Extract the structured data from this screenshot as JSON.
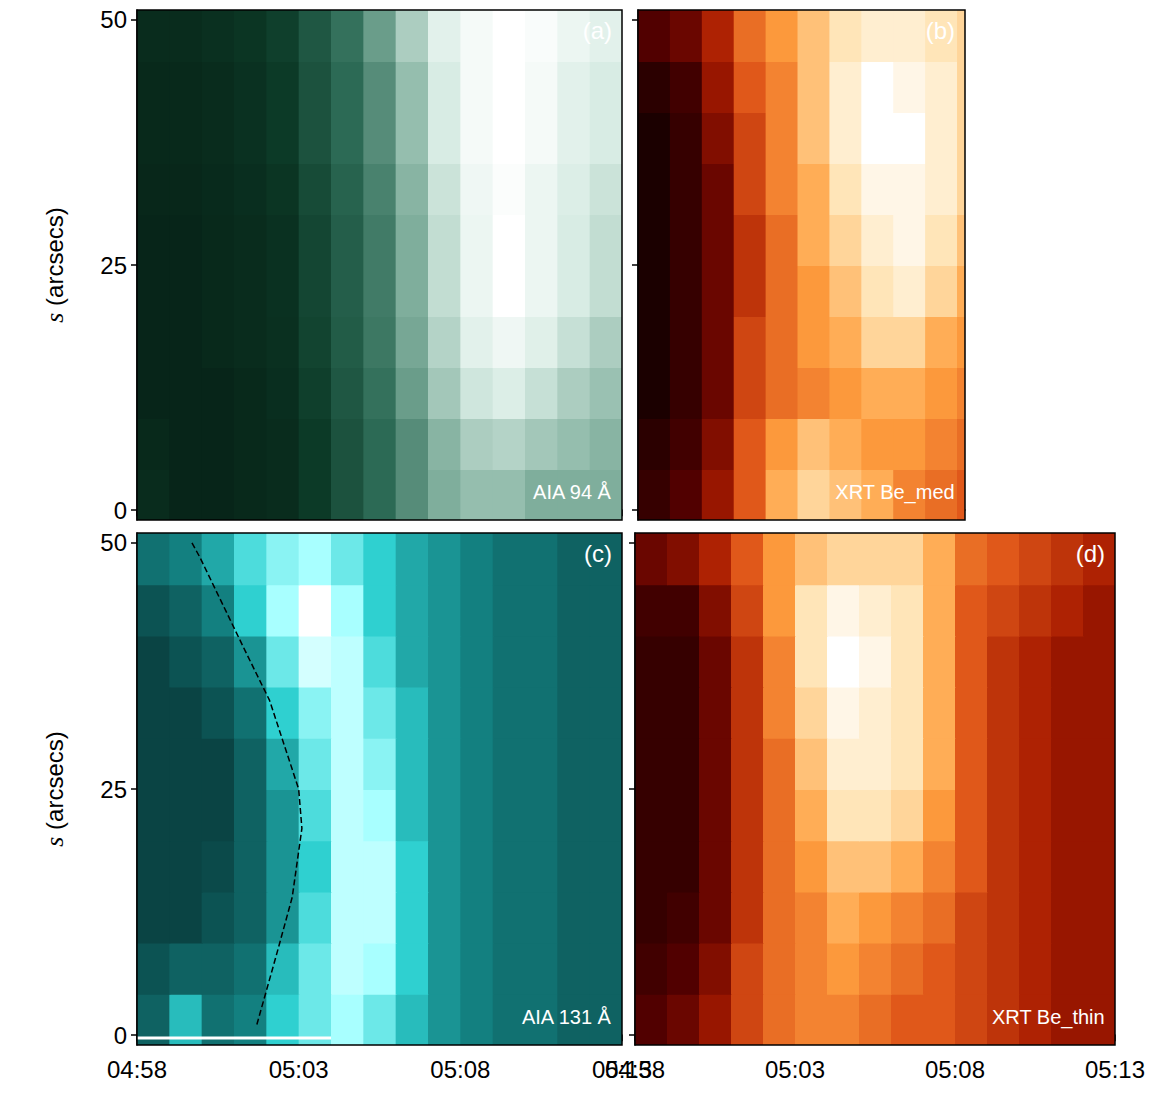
{
  "chart_data": [
    {
      "type": "heatmap",
      "label": "(a)",
      "title": "AIA 94 Å",
      "ylabel": "s (arcsecs)",
      "tick_labels": "y",
      "xlim": [
        298,
        313
      ],
      "xticks": [
        {
          "value": 298,
          "label": "04:58"
        },
        {
          "value": 303,
          "label": "05:03"
        },
        {
          "value": 308,
          "label": "05:08"
        },
        {
          "value": 313,
          "label": "05:13"
        }
      ],
      "ylim": [
        -1,
        51
      ],
      "yticks": [
        0,
        25,
        50
      ],
      "zlim": [
        0,
        1
      ],
      "x": [
        298.5,
        299.5,
        300.5,
        301.5,
        302.5,
        303.5,
        304.5,
        305.5,
        306.5,
        307.5,
        308.5,
        309.5,
        310.5,
        311.5,
        312.5
      ],
      "y": [
        1.6,
        6.8,
        12,
        17.2,
        22.4,
        27.6,
        32.8,
        38,
        43.2,
        48.4
      ],
      "z": [
        [
          0.12,
          0.08,
          0.08,
          0.1,
          0.12,
          0.2,
          0.3,
          0.4,
          0.5,
          0.6,
          0.65,
          0.65,
          0.6,
          0.6,
          0.6
        ],
        [
          0.1,
          0.08,
          0.08,
          0.1,
          0.12,
          0.2,
          0.3,
          0.4,
          0.5,
          0.62,
          0.7,
          0.72,
          0.68,
          0.65,
          0.62
        ],
        [
          0.08,
          0.08,
          0.08,
          0.1,
          0.13,
          0.22,
          0.32,
          0.42,
          0.55,
          0.68,
          0.78,
          0.82,
          0.76,
          0.7,
          0.66
        ],
        [
          0.08,
          0.08,
          0.1,
          0.12,
          0.14,
          0.24,
          0.34,
          0.44,
          0.58,
          0.72,
          0.85,
          0.92,
          0.84,
          0.76,
          0.7
        ],
        [
          0.08,
          0.08,
          0.1,
          0.12,
          0.15,
          0.25,
          0.35,
          0.45,
          0.6,
          0.75,
          0.9,
          1.0,
          0.9,
          0.8,
          0.75
        ],
        [
          0.08,
          0.08,
          0.1,
          0.12,
          0.15,
          0.25,
          0.35,
          0.45,
          0.6,
          0.75,
          0.9,
          1.0,
          0.9,
          0.8,
          0.75
        ],
        [
          0.09,
          0.09,
          0.11,
          0.13,
          0.17,
          0.27,
          0.37,
          0.47,
          0.62,
          0.77,
          0.92,
          0.98,
          0.9,
          0.82,
          0.77
        ],
        [
          0.1,
          0.1,
          0.12,
          0.15,
          0.2,
          0.3,
          0.4,
          0.5,
          0.65,
          0.8,
          0.95,
          1.0,
          0.95,
          0.85,
          0.8
        ],
        [
          0.1,
          0.1,
          0.12,
          0.15,
          0.2,
          0.3,
          0.4,
          0.5,
          0.65,
          0.8,
          0.95,
          1.0,
          0.95,
          0.85,
          0.8
        ],
        [
          0.12,
          0.12,
          0.14,
          0.17,
          0.22,
          0.32,
          0.42,
          0.55,
          0.7,
          0.85,
          0.95,
          1.0,
          0.97,
          0.9,
          0.85
        ]
      ]
    },
    {
      "type": "heatmap",
      "label": "(b)",
      "title": "XRT Be_med",
      "tick_labels": false,
      "xlim": [
        298,
        308.25
      ],
      "xticks": [
        {
          "value": 298,
          "label": "04:58"
        },
        {
          "value": 303,
          "label": "05:03"
        },
        {
          "value": 308,
          "label": "05:08"
        }
      ],
      "ylim": [
        -1,
        51
      ],
      "yticks": [
        0,
        25,
        50
      ],
      "zlim": [
        0,
        1
      ],
      "x": [
        298.5,
        299.5,
        300.5,
        301.5,
        302.5,
        303.5,
        304.5,
        305.5,
        306.5,
        307.5,
        308.5
      ],
      "y": [
        1.6,
        6.8,
        12,
        17.2,
        22.4,
        27.6,
        32.8,
        38,
        43.2,
        48.4
      ],
      "z": [
        [
          0.1,
          0.15,
          0.3,
          0.5,
          0.7,
          0.8,
          0.75,
          0.7,
          0.6,
          0.55,
          0.5
        ],
        [
          0.08,
          0.12,
          0.25,
          0.5,
          0.65,
          0.75,
          0.7,
          0.65,
          0.65,
          0.6,
          0.55
        ],
        [
          0.05,
          0.1,
          0.2,
          0.45,
          0.55,
          0.6,
          0.65,
          0.7,
          0.7,
          0.65,
          0.6
        ],
        [
          0.05,
          0.1,
          0.2,
          0.45,
          0.55,
          0.65,
          0.7,
          0.8,
          0.8,
          0.7,
          0.65
        ],
        [
          0.05,
          0.1,
          0.2,
          0.4,
          0.55,
          0.65,
          0.75,
          0.85,
          0.9,
          0.8,
          0.7
        ],
        [
          0.05,
          0.1,
          0.2,
          0.4,
          0.55,
          0.7,
          0.8,
          0.9,
          0.95,
          0.85,
          0.75
        ],
        [
          0.05,
          0.1,
          0.2,
          0.45,
          0.6,
          0.7,
          0.85,
          0.95,
          0.95,
          0.9,
          0.8
        ],
        [
          0.05,
          0.1,
          0.25,
          0.45,
          0.6,
          0.75,
          0.9,
          1.0,
          1.0,
          0.9,
          0.8
        ],
        [
          0.08,
          0.12,
          0.3,
          0.5,
          0.6,
          0.75,
          0.9,
          1.0,
          0.95,
          0.9,
          0.8
        ],
        [
          0.15,
          0.2,
          0.35,
          0.55,
          0.65,
          0.75,
          0.85,
          0.9,
          0.9,
          0.85,
          0.8
        ]
      ]
    },
    {
      "type": "heatmap",
      "label": "(c)",
      "title": "AIA 131 Å",
      "ylabel": "s (arcsecs)",
      "tick_labels": true,
      "xlim": [
        298,
        313
      ],
      "xticks": [
        {
          "value": 298,
          "label": "04:58"
        },
        {
          "value": 303,
          "label": "05:03"
        },
        {
          "value": 308,
          "label": "05:08"
        },
        {
          "value": 313,
          "label": "05:13"
        }
      ],
      "ylim": [
        -1,
        51
      ],
      "yticks": [
        0,
        25,
        50
      ],
      "zlim": [
        0,
        1
      ],
      "x": [
        298.5,
        299.5,
        300.5,
        301.5,
        302.5,
        303.5,
        304.5,
        305.5,
        306.5,
        307.5,
        308.5,
        309.5,
        310.5,
        311.5,
        312.5
      ],
      "y": [
        1.6,
        6.8,
        12,
        17.2,
        22.4,
        27.6,
        32.8,
        38,
        43.2,
        48.4
      ],
      "z": [
        [
          0.3,
          0.55,
          0.35,
          0.4,
          0.6,
          0.7,
          0.8,
          0.7,
          0.55,
          0.45,
          0.4,
          0.35,
          0.35,
          0.3,
          0.3
        ],
        [
          0.25,
          0.3,
          0.3,
          0.35,
          0.55,
          0.7,
          0.85,
          0.8,
          0.6,
          0.45,
          0.4,
          0.35,
          0.35,
          0.3,
          0.3
        ],
        [
          0.2,
          0.2,
          0.25,
          0.3,
          0.45,
          0.65,
          0.85,
          0.85,
          0.6,
          0.45,
          0.4,
          0.35,
          0.35,
          0.3,
          0.3
        ],
        [
          0.2,
          0.2,
          0.22,
          0.3,
          0.45,
          0.6,
          0.85,
          0.85,
          0.6,
          0.45,
          0.4,
          0.35,
          0.35,
          0.3,
          0.3
        ],
        [
          0.2,
          0.2,
          0.2,
          0.3,
          0.45,
          0.65,
          0.85,
          0.8,
          0.55,
          0.45,
          0.4,
          0.35,
          0.35,
          0.3,
          0.3
        ],
        [
          0.2,
          0.2,
          0.2,
          0.3,
          0.5,
          0.7,
          0.85,
          0.75,
          0.55,
          0.45,
          0.4,
          0.35,
          0.35,
          0.3,
          0.3
        ],
        [
          0.2,
          0.2,
          0.25,
          0.35,
          0.6,
          0.75,
          0.85,
          0.7,
          0.55,
          0.45,
          0.4,
          0.35,
          0.35,
          0.3,
          0.3
        ],
        [
          0.2,
          0.25,
          0.3,
          0.45,
          0.7,
          0.9,
          0.85,
          0.65,
          0.5,
          0.45,
          0.4,
          0.35,
          0.35,
          0.3,
          0.3
        ],
        [
          0.25,
          0.3,
          0.4,
          0.6,
          0.8,
          1.0,
          0.8,
          0.6,
          0.5,
          0.45,
          0.4,
          0.35,
          0.35,
          0.3,
          0.3
        ],
        [
          0.35,
          0.4,
          0.5,
          0.65,
          0.75,
          0.8,
          0.7,
          0.6,
          0.5,
          0.45,
          0.4,
          0.35,
          0.35,
          0.3,
          0.3
        ]
      ],
      "annotations": [
        {
          "type": "line",
          "line_style": "dashed",
          "color": "#000000",
          "x": [
            299.7,
            299.95,
            301.35,
            302.1,
            303.0,
            303.1,
            302.8,
            302.3,
            301.7
          ],
          "y": [
            50,
            48.5,
            39,
            34,
            25,
            21,
            14,
            8,
            1
          ]
        },
        {
          "type": "line",
          "line_style": "solid",
          "color": "#ffffff",
          "x": [
            298,
            304
          ],
          "y": [
            -0.3,
            -0.3
          ]
        }
      ]
    },
    {
      "type": "heatmap",
      "label": "(d)",
      "title": "XRT Be_thin",
      "tick_labels": "x",
      "xlim": [
        298,
        313
      ],
      "xticks": [
        {
          "value": 298,
          "label": "04:58"
        },
        {
          "value": 303,
          "label": "05:03"
        },
        {
          "value": 308,
          "label": "05:08"
        },
        {
          "value": 313,
          "label": "05:13"
        }
      ],
      "ylim": [
        -1,
        51
      ],
      "yticks": [
        0,
        25,
        50
      ],
      "zlim": [
        0,
        1
      ],
      "x": [
        298.5,
        299.5,
        300.5,
        301.5,
        302.5,
        303.5,
        304.5,
        305.5,
        306.5,
        307.5,
        308.5,
        309.5,
        310.5,
        311.5,
        312.5
      ],
      "y": [
        1.6,
        6.8,
        12,
        17.2,
        22.4,
        27.6,
        32.8,
        38,
        43.2,
        48.4
      ],
      "z": [
        [
          0.15,
          0.2,
          0.3,
          0.45,
          0.55,
          0.6,
          0.6,
          0.55,
          0.5,
          0.5,
          0.45,
          0.4,
          0.35,
          0.3,
          0.3
        ],
        [
          0.12,
          0.15,
          0.25,
          0.45,
          0.55,
          0.6,
          0.65,
          0.6,
          0.55,
          0.5,
          0.45,
          0.4,
          0.35,
          0.3,
          0.3
        ],
        [
          0.1,
          0.12,
          0.2,
          0.4,
          0.55,
          0.6,
          0.7,
          0.65,
          0.6,
          0.55,
          0.45,
          0.4,
          0.35,
          0.3,
          0.3
        ],
        [
          0.1,
          0.1,
          0.2,
          0.4,
          0.55,
          0.65,
          0.75,
          0.75,
          0.7,
          0.6,
          0.5,
          0.4,
          0.35,
          0.3,
          0.3
        ],
        [
          0.1,
          0.1,
          0.2,
          0.4,
          0.55,
          0.7,
          0.85,
          0.85,
          0.8,
          0.65,
          0.5,
          0.4,
          0.35,
          0.3,
          0.3
        ],
        [
          0.1,
          0.1,
          0.2,
          0.4,
          0.55,
          0.75,
          0.9,
          0.9,
          0.85,
          0.7,
          0.5,
          0.4,
          0.35,
          0.3,
          0.3
        ],
        [
          0.1,
          0.1,
          0.2,
          0.4,
          0.6,
          0.8,
          0.95,
          0.9,
          0.85,
          0.7,
          0.5,
          0.4,
          0.35,
          0.3,
          0.3
        ],
        [
          0.1,
          0.1,
          0.2,
          0.4,
          0.6,
          0.85,
          1.0,
          0.95,
          0.85,
          0.7,
          0.5,
          0.4,
          0.35,
          0.3,
          0.3
        ],
        [
          0.12,
          0.12,
          0.25,
          0.45,
          0.65,
          0.85,
          0.95,
          0.9,
          0.85,
          0.7,
          0.5,
          0.45,
          0.4,
          0.35,
          0.3
        ],
        [
          0.2,
          0.25,
          0.35,
          0.5,
          0.65,
          0.75,
          0.8,
          0.8,
          0.8,
          0.7,
          0.55,
          0.5,
          0.45,
          0.4,
          0.35
        ]
      ]
    }
  ]
}
